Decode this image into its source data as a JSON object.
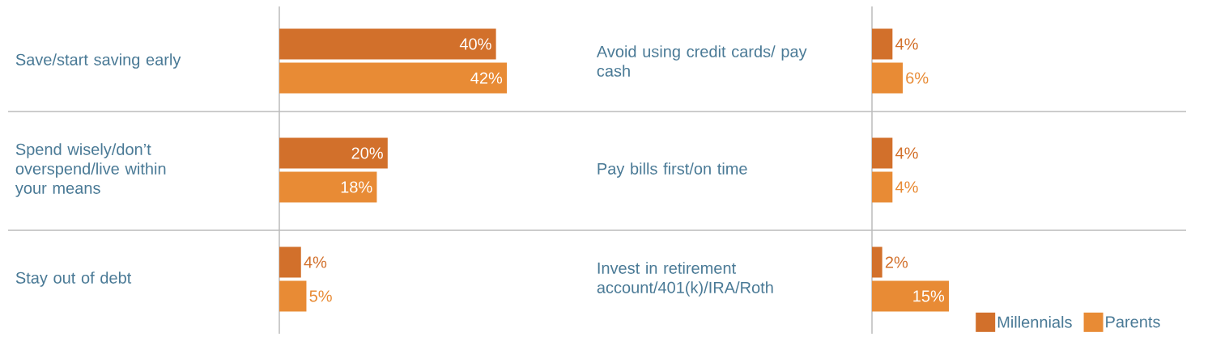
{
  "chart_data": [
    {
      "type": "bar",
      "orientation": "horizontal",
      "categories": [
        "Save/start saving early",
        "Spend wisely/don’t overspend/live within your means",
        "Stay out of debt"
      ],
      "series": [
        {
          "color": "#d2702b",
          "values": [
            40,
            20,
            4
          ],
          "value_labels": [
            "40%",
            "20%",
            "4%"
          ]
        },
        {
          "color": "#e88b35",
          "values": [
            42,
            18,
            5
          ],
          "value_labels": [
            "42%",
            "18%",
            "5%"
          ]
        }
      ]
    },
    {
      "type": "bar",
      "orientation": "horizontal",
      "categories": [
        "Avoid using credit cards/ pay cash",
        "Pay bills first/on time",
        "Invest in retirement account/401(k)/IRA/Roth"
      ],
      "series": [
        {
          "name": "Millennials",
          "color": "#d2702b",
          "values": [
            4,
            4,
            2
          ],
          "value_labels": [
            "4%",
            "4%",
            "2%"
          ]
        },
        {
          "name": "Parents",
          "color": "#e88b35",
          "values": [
            6,
            4,
            15
          ],
          "value_labels": [
            "6%",
            "4%",
            "15%"
          ]
        }
      ],
      "legend": "bottom right"
    }
  ]
}
